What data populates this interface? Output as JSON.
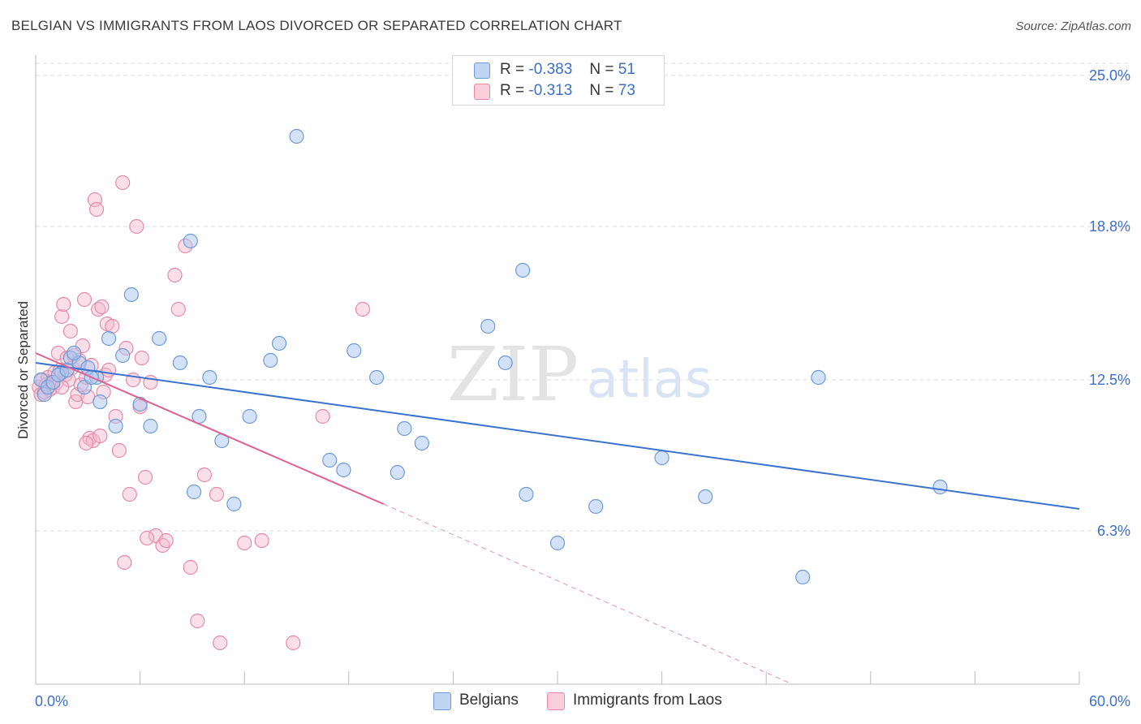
{
  "header": {
    "title": "BELGIAN VS IMMIGRANTS FROM LAOS DIVORCED OR SEPARATED CORRELATION CHART",
    "source": "Source: ZipAtlas.com"
  },
  "watermark": {
    "zip": "ZIP",
    "atlas": "atlas"
  },
  "legend_top": {
    "r_label": "R =",
    "n_label": "N =",
    "rows": [
      {
        "r": "-0.383",
        "n": "51"
      },
      {
        "r": "-0.313",
        "n": "73"
      }
    ]
  },
  "legend_bottom": [
    "Belgians",
    "Immigrants from Laos"
  ],
  "colors": {
    "blue_fill": "#a9c6ef",
    "blue_stroke": "#6c9ad8",
    "blue_line": "#3a72d0",
    "pink_fill": "#f5b9cc",
    "pink_stroke": "#e68aa8",
    "pink_line": "#e0608e",
    "axis_label": "#3d6fc9",
    "grid": "#dcdcdc"
  },
  "chart_data": {
    "type": "scatter",
    "title": "BELGIAN VS IMMIGRANTS FROM LAOS DIVORCED OR SEPARATED CORRELATION CHART",
    "xlabel": "",
    "ylabel": "Divorced or Separated",
    "xlim": [
      0,
      60
    ],
    "ylim": [
      0,
      25.6
    ],
    "x_tick_labels": [
      "0.0%",
      "60.0%"
    ],
    "y_ticks": [
      6.3,
      12.5,
      18.8,
      25.0
    ],
    "y_tick_labels": [
      "6.3%",
      "12.5%",
      "18.8%",
      "25.0%"
    ],
    "grid": true,
    "legend_position": "top-center",
    "series": [
      {
        "name": "Belgians",
        "R": -0.383,
        "N": 51,
        "trend": {
          "x": [
            0,
            60
          ],
          "y": [
            13.2,
            7.2
          ]
        },
        "points": [
          [
            0.3,
            12.5
          ],
          [
            0.5,
            11.9
          ],
          [
            0.7,
            12.2
          ],
          [
            1.0,
            12.4
          ],
          [
            1.5,
            12.8
          ],
          [
            2.0,
            13.4
          ],
          [
            2.5,
            13.2
          ],
          [
            3.0,
            13.0
          ],
          [
            3.5,
            12.6
          ],
          [
            1.3,
            12.7
          ],
          [
            1.8,
            12.9
          ],
          [
            2.2,
            13.6
          ],
          [
            2.8,
            12.2
          ],
          [
            3.2,
            12.6
          ],
          [
            3.7,
            11.6
          ],
          [
            4.2,
            14.2
          ],
          [
            4.6,
            10.6
          ],
          [
            5.0,
            13.5
          ],
          [
            5.5,
            16.0
          ],
          [
            6.0,
            11.5
          ],
          [
            6.6,
            10.6
          ],
          [
            7.1,
            14.2
          ],
          [
            8.3,
            13.2
          ],
          [
            8.9,
            18.2
          ],
          [
            9.4,
            11.0
          ],
          [
            9.1,
            7.9
          ],
          [
            10.0,
            12.6
          ],
          [
            10.7,
            10.0
          ],
          [
            11.4,
            7.4
          ],
          [
            12.3,
            11.0
          ],
          [
            13.5,
            13.3
          ],
          [
            14.0,
            14.0
          ],
          [
            15.0,
            22.5
          ],
          [
            16.9,
            9.2
          ],
          [
            17.7,
            8.8
          ],
          [
            18.3,
            13.7
          ],
          [
            19.6,
            12.6
          ],
          [
            20.8,
            8.7
          ],
          [
            21.2,
            10.5
          ],
          [
            22.2,
            9.9
          ],
          [
            26.0,
            14.7
          ],
          [
            27.0,
            13.2
          ],
          [
            28.0,
            17.0
          ],
          [
            28.2,
            7.8
          ],
          [
            30.0,
            5.8
          ],
          [
            32.2,
            7.3
          ],
          [
            36.0,
            9.3
          ],
          [
            38.5,
            7.7
          ],
          [
            44.1,
            4.4
          ],
          [
            45.0,
            12.6
          ],
          [
            52.0,
            8.1
          ]
        ]
      },
      {
        "name": "Immigrants from Laos",
        "R": -0.313,
        "N": 73,
        "trend": {
          "x": [
            0,
            20.0
          ],
          "y": [
            13.6,
            7.4
          ]
        },
        "trend_dashed": {
          "x": [
            20.0,
            43.5
          ],
          "y": [
            7.4,
            0
          ]
        },
        "points": [
          [
            0.2,
            12.2
          ],
          [
            0.3,
            11.9
          ],
          [
            0.4,
            12.5
          ],
          [
            0.5,
            12.0
          ],
          [
            0.6,
            12.3
          ],
          [
            0.7,
            12.6
          ],
          [
            0.8,
            12.1
          ],
          [
            0.9,
            12.4
          ],
          [
            1.0,
            12.2
          ],
          [
            1.1,
            12.8
          ],
          [
            1.2,
            12.4
          ],
          [
            1.3,
            13.6
          ],
          [
            1.4,
            12.9
          ],
          [
            1.5,
            15.1
          ],
          [
            1.6,
            15.6
          ],
          [
            1.7,
            12.7
          ],
          [
            1.8,
            13.4
          ],
          [
            1.9,
            12.5
          ],
          [
            2.0,
            14.5
          ],
          [
            2.1,
            13.0
          ],
          [
            2.2,
            13.5
          ],
          [
            2.3,
            11.6
          ],
          [
            2.4,
            11.9
          ],
          [
            2.5,
            13.3
          ],
          [
            2.6,
            12.3
          ],
          [
            2.7,
            13.9
          ],
          [
            2.8,
            15.8
          ],
          [
            2.9,
            12.6
          ],
          [
            3.0,
            11.8
          ],
          [
            3.1,
            10.1
          ],
          [
            3.2,
            13.1
          ],
          [
            3.3,
            10.0
          ],
          [
            3.4,
            19.9
          ],
          [
            3.5,
            19.5
          ],
          [
            3.6,
            15.4
          ],
          [
            3.7,
            10.2
          ],
          [
            3.8,
            15.5
          ],
          [
            4.0,
            12.7
          ],
          [
            4.1,
            14.8
          ],
          [
            4.2,
            12.9
          ],
          [
            4.4,
            14.7
          ],
          [
            4.6,
            11.0
          ],
          [
            4.8,
            9.6
          ],
          [
            5.0,
            20.6
          ],
          [
            5.2,
            13.8
          ],
          [
            5.4,
            7.8
          ],
          [
            5.6,
            12.5
          ],
          [
            5.8,
            18.8
          ],
          [
            6.0,
            11.4
          ],
          [
            6.1,
            13.4
          ],
          [
            6.3,
            8.5
          ],
          [
            6.6,
            12.4
          ],
          [
            6.9,
            6.1
          ],
          [
            7.3,
            5.7
          ],
          [
            7.5,
            5.9
          ],
          [
            8.0,
            16.8
          ],
          [
            8.2,
            15.4
          ],
          [
            8.6,
            18.0
          ],
          [
            8.9,
            4.8
          ],
          [
            9.3,
            2.6
          ],
          [
            9.7,
            8.6
          ],
          [
            10.4,
            7.8
          ],
          [
            10.6,
            1.7
          ],
          [
            12.0,
            5.8
          ],
          [
            13.0,
            5.9
          ],
          [
            14.8,
            1.7
          ],
          [
            16.5,
            11.0
          ],
          [
            18.8,
            15.4
          ],
          [
            5.1,
            5.0
          ],
          [
            6.4,
            6.0
          ],
          [
            2.9,
            9.9
          ],
          [
            3.9,
            12.0
          ],
          [
            1.5,
            12.2
          ]
        ]
      }
    ]
  }
}
